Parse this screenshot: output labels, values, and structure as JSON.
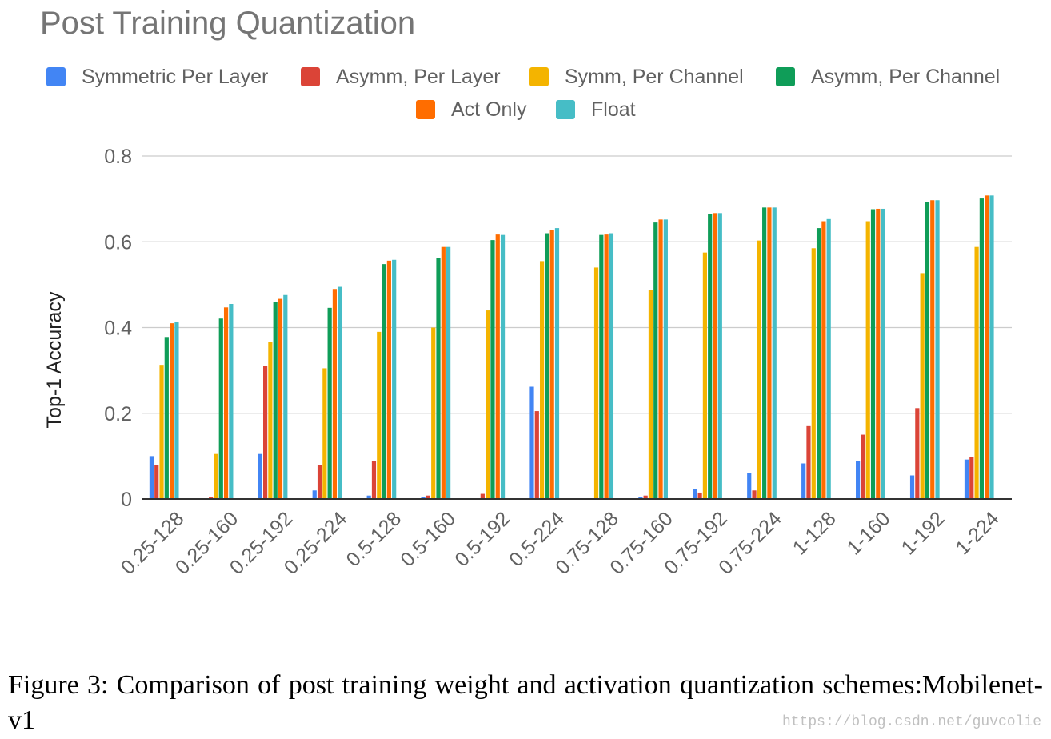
{
  "chart_data": {
    "type": "bar",
    "title": "Post Training Quantization",
    "ylabel": "Top-1 Accuracy",
    "xlabel": "",
    "ylim": [
      0,
      0.8
    ],
    "yticks": [
      "0",
      "0.2",
      "0.4",
      "0.6",
      "0.8"
    ],
    "grid": true,
    "legend_position": "top",
    "categories": [
      "0.25-128",
      "0.25-160",
      "0.25-192",
      "0.25-224",
      "0.5-128",
      "0.5-160",
      "0.5-192",
      "0.5-224",
      "0.75-128",
      "0.75-160",
      "0.75-192",
      "0.75-224",
      "1-128",
      "1-160",
      "1-192",
      "1-224"
    ],
    "series": [
      {
        "name": "Symmetric Per Layer",
        "color": "#4285f4",
        "values": [
          0.1,
          0.0,
          0.105,
          0.02,
          0.008,
          0.005,
          0.0,
          0.262,
          0.0,
          0.005,
          0.024,
          0.06,
          0.083,
          0.088,
          0.055,
          0.092
        ]
      },
      {
        "name": "Asymm, Per Layer",
        "color": "#db4437",
        "values": [
          0.08,
          0.005,
          0.31,
          0.08,
          0.088,
          0.008,
          0.012,
          0.205,
          0.0,
          0.008,
          0.015,
          0.02,
          0.17,
          0.15,
          0.212,
          0.097
        ]
      },
      {
        "name": "Symm, Per Channel",
        "color": "#f4b400",
        "values": [
          0.313,
          0.105,
          0.366,
          0.305,
          0.39,
          0.4,
          0.44,
          0.555,
          0.54,
          0.487,
          0.575,
          0.603,
          0.585,
          0.648,
          0.527,
          0.588
        ]
      },
      {
        "name": "Asymm, Per Channel",
        "color": "#0f9d58",
        "values": [
          0.378,
          0.421,
          0.46,
          0.446,
          0.548,
          0.563,
          0.604,
          0.62,
          0.616,
          0.645,
          0.665,
          0.68,
          0.632,
          0.676,
          0.693,
          0.701
        ]
      },
      {
        "name": "Act Only",
        "color": "#ff6d00",
        "values": [
          0.41,
          0.447,
          0.467,
          0.49,
          0.556,
          0.588,
          0.617,
          0.627,
          0.617,
          0.652,
          0.667,
          0.68,
          0.648,
          0.677,
          0.697,
          0.708
        ]
      },
      {
        "name": "Float",
        "color": "#46bdc6",
        "values": [
          0.414,
          0.455,
          0.476,
          0.495,
          0.558,
          0.588,
          0.616,
          0.632,
          0.62,
          0.652,
          0.667,
          0.68,
          0.653,
          0.677,
          0.697,
          0.708
        ]
      }
    ]
  },
  "caption": "Figure 3:  Comparison of post training weight and activation quantization schemes:Mobilenet-v1",
  "watermark": "https://blog.csdn.net/guvcolie"
}
